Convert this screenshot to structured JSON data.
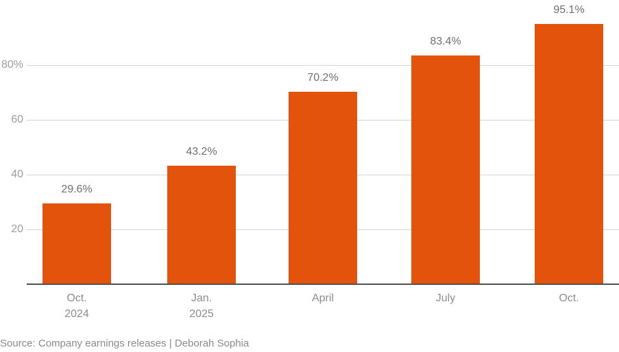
{
  "chart_data": {
    "type": "bar",
    "title": "",
    "categories": [
      "Oct. 2024",
      "Jan. 2025",
      "April",
      "July",
      "Oct."
    ],
    "category_label_lines": [
      [
        "Oct.",
        "2024"
      ],
      [
        "Jan.",
        "2025"
      ],
      [
        "April"
      ],
      [
        "July"
      ],
      [
        "Oct."
      ]
    ],
    "values": [
      29.6,
      43.2,
      70.2,
      83.4,
      95.1
    ],
    "data_labels": [
      "29.6%",
      "43.2%",
      "70.2%",
      "83.4%",
      "95.1%"
    ],
    "y_ticks": [
      {
        "value": 20,
        "label": "20"
      },
      {
        "value": 40,
        "label": "40"
      },
      {
        "value": 60,
        "label": "60"
      },
      {
        "value": 80,
        "label": "80%"
      }
    ],
    "ylim": [
      0,
      100
    ],
    "xlabel": "",
    "ylabel": "",
    "grid": "horizontal",
    "legend": "none",
    "bar_color": "#e4530c",
    "gridline_color": "#d4d4d4",
    "axis_line_color": "#4f4f4f",
    "tick_label_color": "#9c9c9c",
    "data_label_color": "#6f6f6f"
  },
  "footer": {
    "source": "Source: Company earnings releases | Deborah Sophia"
  }
}
